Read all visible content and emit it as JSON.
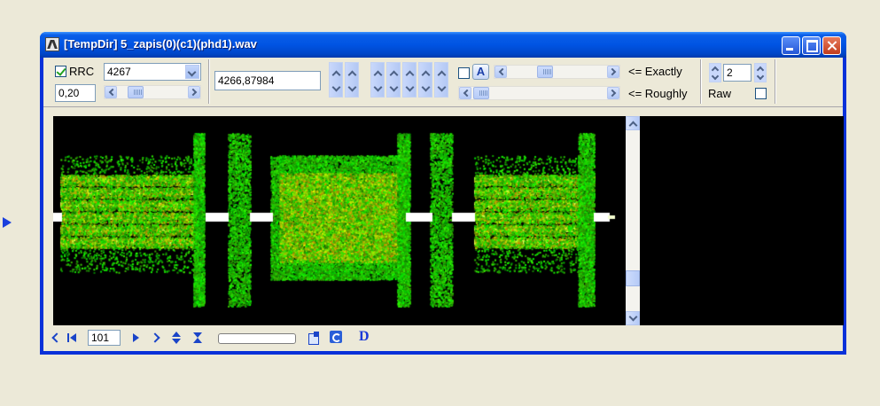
{
  "window": {
    "title": "[TempDir] 5_zapis(0)(c1)(phd1).wav"
  },
  "toolbar": {
    "rrc_label": "RRC",
    "rrc_checked": true,
    "rrc_value": "4267",
    "rolloff_value": "0,20",
    "frequency_value": "4266,87984",
    "auto_label": "A",
    "exactly_label": "<= Exactly",
    "roughly_label": "<= Roughly",
    "spin_value": "2",
    "raw_label": "Raw",
    "raw_checked": false
  },
  "bottombar": {
    "position_value": "101",
    "d_label": "D"
  },
  "spectrogram": {
    "colors": {
      "background": "#000000",
      "signal": "#7aff1a"
    }
  }
}
